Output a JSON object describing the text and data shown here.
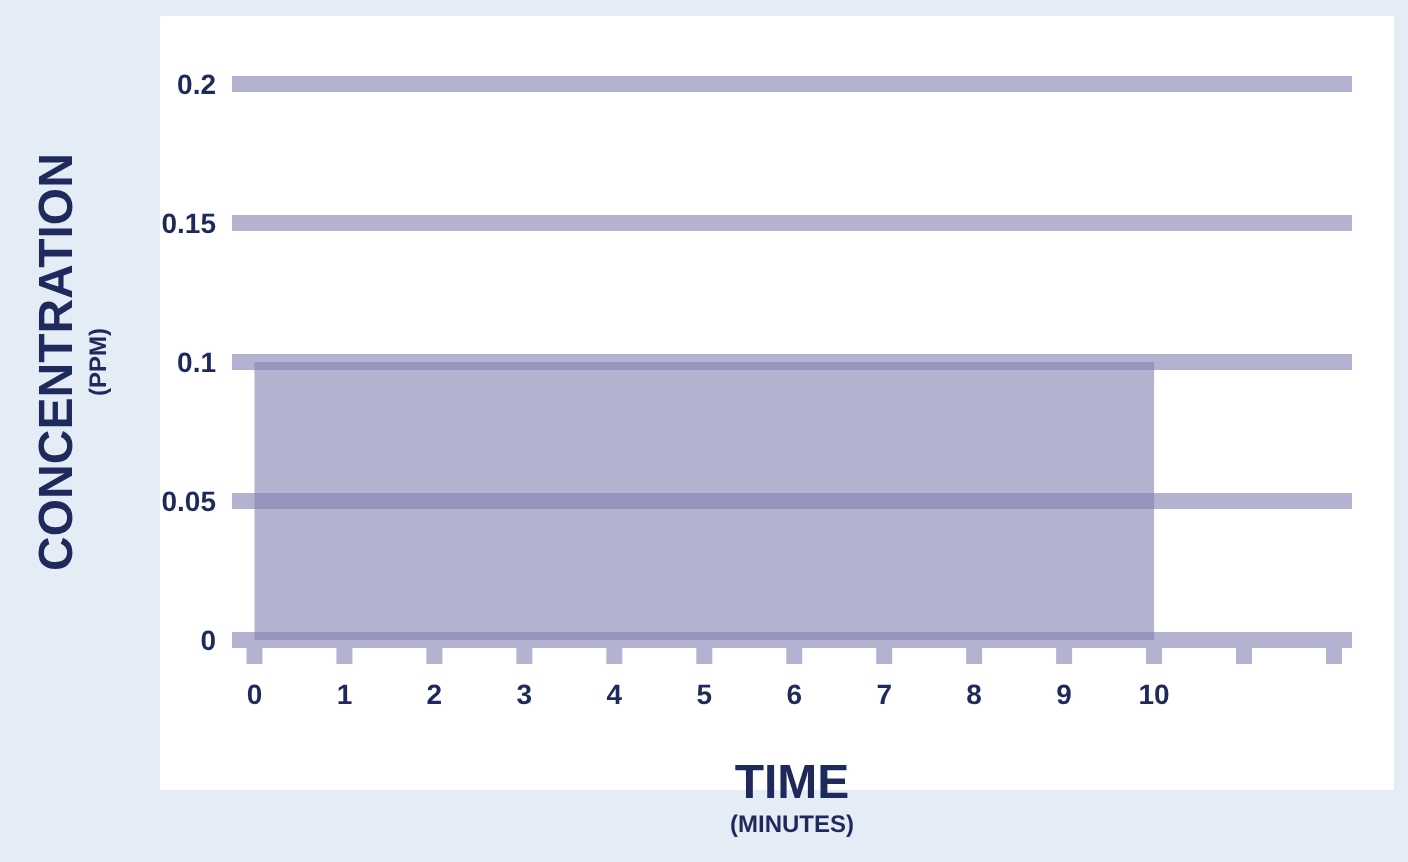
{
  "chart_data": {
    "type": "area",
    "xlabel": "TIME\n(MINUTES)",
    "ylabel": "CONCENTRATION\n(PPM)",
    "x": [
      0,
      10
    ],
    "series": [
      {
        "color": "#8080b0",
        "values": [
          0.1,
          0.1
        ]
      }
    ],
    "xlim": [
      -0.25,
      12.2
    ],
    "xticks": [
      0,
      1,
      2,
      3,
      4,
      5,
      6,
      7,
      8,
      9,
      10,
      {
        "value": 11,
        "label": null
      },
      {
        "value": 12,
        "label": null
      }
    ],
    "ylim": [
      0,
      0.2
    ],
    "yticks": [
      0,
      0.05,
      0.1,
      0.15,
      0.2
    ],
    "grid": "y",
    "legend": false
  }
}
